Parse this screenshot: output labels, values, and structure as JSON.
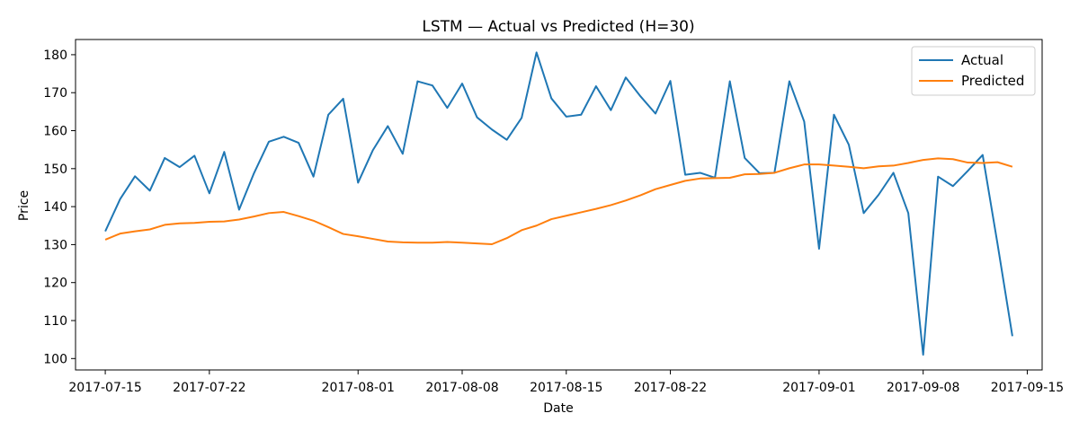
{
  "chart_data": {
    "type": "line",
    "title": "LSTM — Actual vs Predicted (H=30)",
    "xlabel": "Date",
    "ylabel": "Price",
    "x_range": [
      "2017-07-13",
      "2017-09-16"
    ],
    "ylim": [
      97,
      184
    ],
    "x_ticks": [
      "2017-07-15",
      "2017-07-22",
      "2017-08-01",
      "2017-08-08",
      "2017-08-15",
      "2017-08-22",
      "2017-09-01",
      "2017-09-08",
      "2017-09-15"
    ],
    "y_ticks": [
      100,
      110,
      120,
      130,
      140,
      150,
      160,
      170,
      180
    ],
    "grid": false,
    "legend_position": "top-right",
    "x": [
      "2017-07-15",
      "2017-07-16",
      "2017-07-17",
      "2017-07-18",
      "2017-07-19",
      "2017-07-20",
      "2017-07-21",
      "2017-07-22",
      "2017-07-23",
      "2017-07-24",
      "2017-07-25",
      "2017-07-26",
      "2017-07-27",
      "2017-07-28",
      "2017-07-29",
      "2017-07-30",
      "2017-07-31",
      "2017-08-01",
      "2017-08-02",
      "2017-08-03",
      "2017-08-04",
      "2017-08-05",
      "2017-08-06",
      "2017-08-07",
      "2017-08-08",
      "2017-08-09",
      "2017-08-10",
      "2017-08-11",
      "2017-08-12",
      "2017-08-13",
      "2017-08-14",
      "2017-08-15",
      "2017-08-16",
      "2017-08-17",
      "2017-08-18",
      "2017-08-19",
      "2017-08-20",
      "2017-08-21",
      "2017-08-22",
      "2017-08-23",
      "2017-08-24",
      "2017-08-25",
      "2017-08-26",
      "2017-08-27",
      "2017-08-28",
      "2017-08-29",
      "2017-08-30",
      "2017-08-31",
      "2017-09-01",
      "2017-09-02",
      "2017-09-03",
      "2017-09-04",
      "2017-09-05",
      "2017-09-06",
      "2017-09-07",
      "2017-09-08",
      "2017-09-09",
      "2017-09-10",
      "2017-09-11",
      "2017-09-12",
      "2017-09-13",
      "2017-09-14"
    ],
    "series": [
      {
        "name": "Actual",
        "color": "#1f77b4",
        "values": [
          133.5,
          142,
          148,
          144.2,
          152.8,
          150.4,
          153.4,
          143.5,
          154.4,
          139.2,
          148.8,
          157.1,
          158.4,
          156.8,
          147.9,
          164.2,
          168.4,
          146.3,
          154.9,
          161.2,
          153.9,
          173,
          171.9,
          166,
          172.4,
          163.5,
          160.3,
          157.6,
          163.4,
          180.6,
          168.5,
          163.7,
          164.2,
          171.7,
          165.4,
          174,
          169,
          164.5,
          173.1,
          148.4,
          148.9,
          147.6,
          173,
          152.8,
          148.8,
          148.9,
          173,
          162.4,
          128.9,
          164.2,
          156.3,
          138.3,
          143.1,
          148.9,
          138.3,
          101,
          147.9,
          145.4,
          149.4,
          153.6,
          130.2,
          105.9
        ]
      },
      {
        "name": "Predicted",
        "color": "#ff7f0e",
        "values": [
          131.3,
          132.9,
          133.5,
          134,
          135.2,
          135.6,
          135.7,
          136,
          136.1,
          136.6,
          137.4,
          138.3,
          138.6,
          137.5,
          136.3,
          134.6,
          132.8,
          132.2,
          131.5,
          130.8,
          130.6,
          130.5,
          130.5,
          130.7,
          130.5,
          130.3,
          130.1,
          131.7,
          133.8,
          135,
          136.7,
          137.6,
          138.5,
          139.4,
          140.4,
          141.6,
          143,
          144.6,
          145.7,
          146.8,
          147.4,
          147.5,
          147.6,
          148.5,
          148.6,
          148.9,
          150.1,
          151.1,
          151.1,
          150.8,
          150.5,
          150.1,
          150.6,
          150.8,
          151.5,
          152.3,
          152.7,
          152.5,
          151.6,
          151.5,
          151.7,
          150.5
        ]
      }
    ]
  }
}
